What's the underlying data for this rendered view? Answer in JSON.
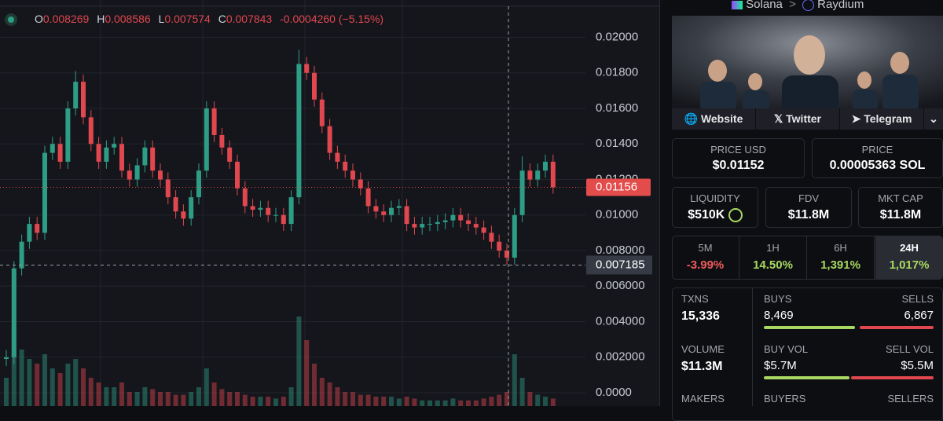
{
  "ohlc_header": {
    "open_key": "O",
    "open": "0.008269",
    "high_key": "H",
    "high": "0.008586",
    "low_key": "L",
    "low": "0.007574",
    "close_key": "C",
    "close": "0.007843",
    "change": "-0.0004260 (−5.15%)"
  },
  "chart_data": {
    "type": "candlestick",
    "open": [
      0.0019,
      0.002,
      0.007,
      0.0085,
      0.0095,
      0.009,
      0.0135,
      0.014,
      0.013,
      0.016,
      0.0175,
      0.0155,
      0.014,
      0.013,
      0.0138,
      0.014,
      0.0125,
      0.012,
      0.0128,
      0.0138,
      0.0125,
      0.012,
      0.011,
      0.0102,
      0.0098,
      0.011,
      0.0125,
      0.016,
      0.0145,
      0.0138,
      0.013,
      0.0115,
      0.0105,
      0.0103,
      0.0104,
      0.01,
      0.01,
      0.0095,
      0.011,
      0.0185,
      0.018,
      0.0165,
      0.015,
      0.0135,
      0.013,
      0.0125,
      0.012,
      0.0115,
      0.0105,
      0.0102,
      0.01,
      0.0104,
      0.0105,
      0.0095,
      0.0093,
      0.0095,
      0.0095,
      0.0096,
      0.0097,
      0.01,
      0.0097,
      0.0095,
      0.0093,
      0.009,
      0.0085,
      0.008,
      0.0076,
      0.01,
      0.0125,
      0.012,
      0.0125,
      0.013
    ],
    "high": [
      0.0024,
      0.0074,
      0.0089,
      0.0099,
      0.0099,
      0.0139,
      0.0144,
      0.0144,
      0.0164,
      0.0181,
      0.0179,
      0.0159,
      0.0144,
      0.0142,
      0.0144,
      0.0144,
      0.0129,
      0.0132,
      0.0142,
      0.0142,
      0.0129,
      0.0124,
      0.0114,
      0.0106,
      0.0114,
      0.0129,
      0.0164,
      0.0164,
      0.0149,
      0.0142,
      0.0134,
      0.0119,
      0.0109,
      0.0108,
      0.0108,
      0.0104,
      0.0104,
      0.0114,
      0.0193,
      0.0189,
      0.0184,
      0.0169,
      0.0154,
      0.0139,
      0.0134,
      0.0129,
      0.0124,
      0.0119,
      0.0109,
      0.0106,
      0.0108,
      0.0109,
      0.0109,
      0.0099,
      0.0099,
      0.0099,
      0.01,
      0.0101,
      0.0104,
      0.0104,
      0.0101,
      0.0099,
      0.0097,
      0.0094,
      0.0089,
      0.0084,
      0.0104,
      0.0133,
      0.0129,
      0.0129,
      0.0134,
      0.0134
    ],
    "low": [
      0.0015,
      0.0016,
      0.0066,
      0.0081,
      0.0086,
      0.0086,
      0.0131,
      0.0126,
      0.0126,
      0.0156,
      0.0151,
      0.0136,
      0.0126,
      0.0126,
      0.0134,
      0.0121,
      0.0116,
      0.0116,
      0.0124,
      0.0121,
      0.0116,
      0.0106,
      0.0098,
      0.0094,
      0.0094,
      0.0106,
      0.0121,
      0.0141,
      0.0134,
      0.0126,
      0.0111,
      0.0101,
      0.0099,
      0.0099,
      0.0096,
      0.0096,
      0.0091,
      0.0091,
      0.0106,
      0.0176,
      0.0161,
      0.0146,
      0.0131,
      0.0126,
      0.0121,
      0.0116,
      0.0111,
      0.0101,
      0.0098,
      0.0096,
      0.0096,
      0.01,
      0.0091,
      0.0089,
      0.0089,
      0.0091,
      0.0091,
      0.0092,
      0.0093,
      0.0093,
      0.0091,
      0.0089,
      0.0086,
      0.0081,
      0.0076,
      0.0072,
      0.0072,
      0.0096,
      0.0116,
      0.0116,
      0.0121,
      0.0112
    ],
    "close": [
      0.002,
      0.007,
      0.0085,
      0.0095,
      0.009,
      0.0135,
      0.014,
      0.013,
      0.016,
      0.0175,
      0.0155,
      0.014,
      0.013,
      0.0138,
      0.014,
      0.0125,
      0.012,
      0.0128,
      0.0138,
      0.0125,
      0.012,
      0.011,
      0.0102,
      0.0098,
      0.011,
      0.0125,
      0.016,
      0.0145,
      0.0138,
      0.013,
      0.0115,
      0.0105,
      0.0103,
      0.0104,
      0.01,
      0.01,
      0.0095,
      0.011,
      0.0185,
      0.018,
      0.0165,
      0.015,
      0.0135,
      0.013,
      0.0125,
      0.012,
      0.0115,
      0.0105,
      0.0102,
      0.01,
      0.0104,
      0.0105,
      0.0095,
      0.0093,
      0.0095,
      0.0095,
      0.0096,
      0.0097,
      0.01,
      0.0097,
      0.0095,
      0.0093,
      0.009,
      0.0085,
      0.008,
      0.0076,
      0.01,
      0.0125,
      0.012,
      0.0125,
      0.013,
      0.01156
    ],
    "volume": [
      30,
      80,
      60,
      50,
      45,
      55,
      40,
      35,
      45,
      50,
      40,
      30,
      25,
      20,
      20,
      25,
      15,
      15,
      20,
      18,
      15,
      15,
      12,
      12,
      15,
      20,
      40,
      25,
      18,
      15,
      15,
      12,
      10,
      10,
      10,
      8,
      10,
      20,
      95,
      70,
      45,
      30,
      25,
      20,
      15,
      15,
      12,
      12,
      10,
      10,
      10,
      8,
      10,
      8,
      6,
      6,
      6,
      6,
      8,
      6,
      6,
      6,
      8,
      10,
      12,
      15,
      55,
      30,
      15,
      12,
      10,
      8
    ],
    "up_color": "#2e9d86",
    "down_color": "#e0474e",
    "ylim": [
      -0.00075,
      0.0221
    ],
    "yticks": [
      {
        "value": 0,
        "label": "0.0000"
      },
      {
        "value": 0.002,
        "label": "0.002000"
      },
      {
        "value": 0.004,
        "label": "0.004000"
      },
      {
        "value": 0.006,
        "label": "0.006000"
      },
      {
        "value": 0.008,
        "label": "0.008000"
      },
      {
        "value": 0.01,
        "label": "0.01000"
      },
      {
        "value": 0.012,
        "label": "0.01200"
      },
      {
        "value": 0.014,
        "label": "0.01400"
      },
      {
        "value": 0.016,
        "label": "0.01600"
      },
      {
        "value": 0.018,
        "label": "0.01800"
      },
      {
        "value": 0.02,
        "label": "0.02000"
      }
    ],
    "y2lim": [
      0,
      100
    ],
    "last_price": 0.01156,
    "crosshair_price": 0.007185,
    "grid": true
  },
  "panel": {
    "breadcrumb": [
      "Solana",
      "Raydium"
    ],
    "links": [
      "Website",
      "Twitter",
      "Telegram"
    ],
    "price_usd": {
      "label": "PRICE USD",
      "value": "$0.01152"
    },
    "price": {
      "label": "PRICE",
      "value": "0.00005363 SOL"
    },
    "stats": [
      {
        "label": "LIQUIDITY",
        "value": "$510K"
      },
      {
        "label": "FDV",
        "value": "$11.8M"
      },
      {
        "label": "MKT CAP",
        "value": "$11.8M"
      }
    ],
    "timeframes": [
      {
        "label": "5M",
        "change": "-3.99%"
      },
      {
        "label": "1H",
        "change": "14.50%"
      },
      {
        "label": "6H",
        "change": "1,391%"
      },
      {
        "label": "24H",
        "change": "1,017%"
      }
    ],
    "txns": {
      "label": "TXNS",
      "value": "15,336"
    },
    "buys": {
      "label": "BUYS",
      "value": "8,469"
    },
    "sells": {
      "label": "SELLS",
      "value": "6,867"
    },
    "volume": {
      "label": "VOLUME",
      "value": "$11.3M"
    },
    "buy_vol": {
      "label": "BUY VOL",
      "value": "$5.7M"
    },
    "sell_vol": {
      "label": "SELL VOL",
      "value": "$5.5M"
    },
    "makers": {
      "label": "MAKERS"
    },
    "buyers": {
      "label": "BUYERS"
    },
    "sellers": {
      "label": "SELLERS"
    }
  }
}
